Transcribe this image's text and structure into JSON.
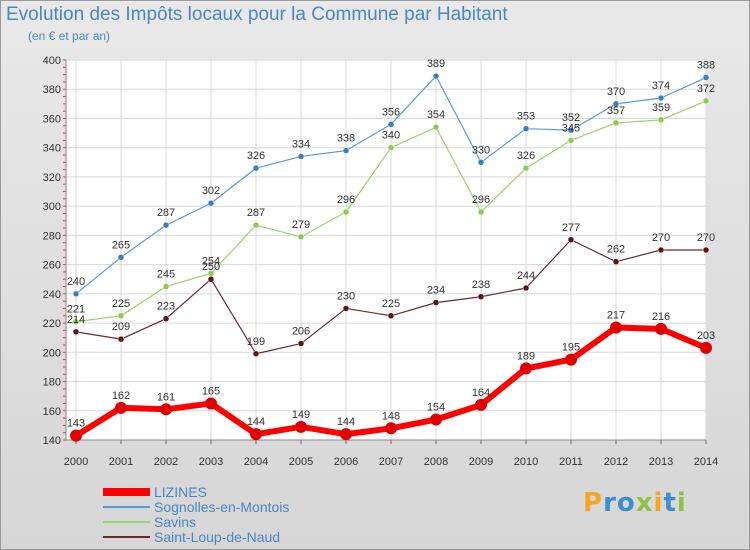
{
  "title": "Evolution des Impôts locaux pour la Commune par Habitant",
  "subtitle": "(en € et par an)",
  "logo": {
    "text": "Proxiti"
  },
  "chart_data": {
    "type": "line",
    "title": "Evolution des Impôts locaux pour la Commune par Habitant",
    "subtitle": "(en € et par an)",
    "x": [
      "2000",
      "2001",
      "2002",
      "2003",
      "2004",
      "2005",
      "2006",
      "2007",
      "2008",
      "2009",
      "2010",
      "2011",
      "2012",
      "2013",
      "2014"
    ],
    "ylim": [
      140,
      400
    ],
    "yticks": [
      140,
      160,
      180,
      200,
      220,
      240,
      260,
      280,
      300,
      320,
      340,
      360,
      380,
      400
    ],
    "grid": true,
    "legend_position": "bottom-left",
    "series": [
      {
        "name": "Sognolles-en-Montois",
        "color": "#5b9bd5",
        "marker": "#3b7dc2",
        "width": 1.2,
        "values": [
          240,
          265,
          287,
          302,
          326,
          334,
          338,
          356,
          389,
          330,
          353,
          352,
          370,
          374,
          388
        ]
      },
      {
        "name": "Savins",
        "color": "#9ad46a",
        "marker": "#8bcc4f",
        "width": 1.2,
        "values": [
          221,
          225,
          245,
          254,
          287,
          279,
          296,
          340,
          354,
          296,
          326,
          345,
          357,
          359,
          372
        ]
      },
      {
        "name": "Saint-Loup-de-Naud",
        "color": "#6e2a2a",
        "marker": "#5a1515",
        "width": 1.2,
        "values": [
          214,
          209,
          223,
          250,
          199,
          206,
          230,
          225,
          234,
          238,
          244,
          277,
          262,
          270,
          270
        ]
      },
      {
        "name": "LIZINES",
        "color": "#ff0000",
        "marker": "#e00000",
        "width": 6,
        "values": [
          143,
          162,
          161,
          165,
          144,
          149,
          144,
          148,
          154,
          164,
          189,
          195,
          217,
          216,
          203
        ]
      }
    ],
    "legend_order": [
      "LIZINES",
      "Sognolles-en-Montois",
      "Savins",
      "Saint-Loup-de-Naud"
    ]
  }
}
